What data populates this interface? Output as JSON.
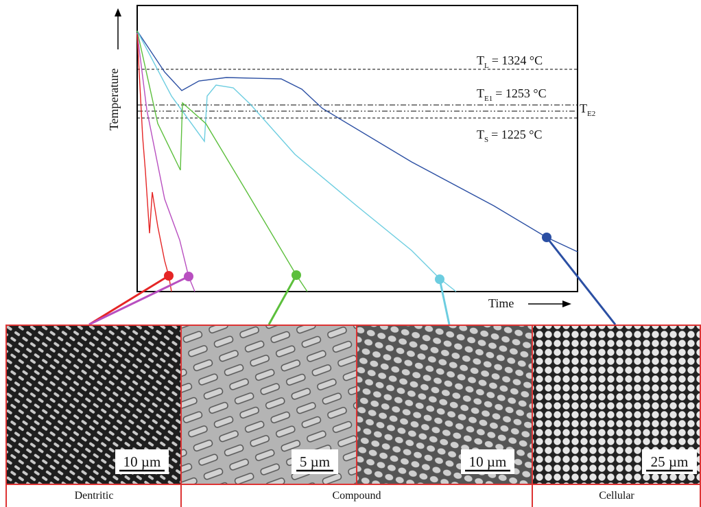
{
  "axes": {
    "y_label": "Temperature",
    "x_label": "Time"
  },
  "levels": [
    {
      "symbol": "T",
      "sub": "L",
      "text": "= 1324 °C"
    },
    {
      "symbol": "T",
      "sub": "E1",
      "text": "= 1253 °C"
    },
    {
      "symbol": "T",
      "sub": "E2"
    },
    {
      "symbol": "T",
      "sub": "S",
      "text": "= 1225 °C"
    }
  ],
  "panels": [
    {
      "scale_bar": "10 µm"
    },
    {
      "scale_bar": "5 µm"
    },
    {
      "scale_bar": "10 µm"
    },
    {
      "scale_bar": "25 µm"
    }
  ],
  "captions": [
    "Dentritic",
    "Compound",
    "Cellular"
  ]
}
